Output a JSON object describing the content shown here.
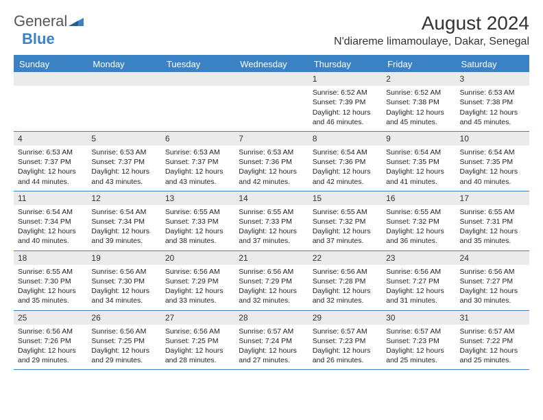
{
  "logo": {
    "general": "General",
    "blue": "Blue"
  },
  "title": "August 2024",
  "location": "N'diareme limamoulaye, Dakar, Senegal",
  "colors": {
    "header_bg": "#3b82c4",
    "header_text": "#ffffff",
    "daynum_bg": "#ebebeb",
    "rule": "#3b82c4",
    "text": "#222222",
    "page_bg": "#ffffff"
  },
  "day_headers": [
    "Sunday",
    "Monday",
    "Tuesday",
    "Wednesday",
    "Thursday",
    "Friday",
    "Saturday"
  ],
  "weeks": [
    [
      null,
      null,
      null,
      null,
      {
        "n": "1",
        "sunrise": "6:52 AM",
        "sunset": "7:39 PM",
        "daylight": "12 hours and 46 minutes."
      },
      {
        "n": "2",
        "sunrise": "6:52 AM",
        "sunset": "7:38 PM",
        "daylight": "12 hours and 45 minutes."
      },
      {
        "n": "3",
        "sunrise": "6:53 AM",
        "sunset": "7:38 PM",
        "daylight": "12 hours and 45 minutes."
      }
    ],
    [
      {
        "n": "4",
        "sunrise": "6:53 AM",
        "sunset": "7:37 PM",
        "daylight": "12 hours and 44 minutes."
      },
      {
        "n": "5",
        "sunrise": "6:53 AM",
        "sunset": "7:37 PM",
        "daylight": "12 hours and 43 minutes."
      },
      {
        "n": "6",
        "sunrise": "6:53 AM",
        "sunset": "7:37 PM",
        "daylight": "12 hours and 43 minutes."
      },
      {
        "n": "7",
        "sunrise": "6:53 AM",
        "sunset": "7:36 PM",
        "daylight": "12 hours and 42 minutes."
      },
      {
        "n": "8",
        "sunrise": "6:54 AM",
        "sunset": "7:36 PM",
        "daylight": "12 hours and 42 minutes."
      },
      {
        "n": "9",
        "sunrise": "6:54 AM",
        "sunset": "7:35 PM",
        "daylight": "12 hours and 41 minutes."
      },
      {
        "n": "10",
        "sunrise": "6:54 AM",
        "sunset": "7:35 PM",
        "daylight": "12 hours and 40 minutes."
      }
    ],
    [
      {
        "n": "11",
        "sunrise": "6:54 AM",
        "sunset": "7:34 PM",
        "daylight": "12 hours and 40 minutes."
      },
      {
        "n": "12",
        "sunrise": "6:54 AM",
        "sunset": "7:34 PM",
        "daylight": "12 hours and 39 minutes."
      },
      {
        "n": "13",
        "sunrise": "6:55 AM",
        "sunset": "7:33 PM",
        "daylight": "12 hours and 38 minutes."
      },
      {
        "n": "14",
        "sunrise": "6:55 AM",
        "sunset": "7:33 PM",
        "daylight": "12 hours and 37 minutes."
      },
      {
        "n": "15",
        "sunrise": "6:55 AM",
        "sunset": "7:32 PM",
        "daylight": "12 hours and 37 minutes."
      },
      {
        "n": "16",
        "sunrise": "6:55 AM",
        "sunset": "7:32 PM",
        "daylight": "12 hours and 36 minutes."
      },
      {
        "n": "17",
        "sunrise": "6:55 AM",
        "sunset": "7:31 PM",
        "daylight": "12 hours and 35 minutes."
      }
    ],
    [
      {
        "n": "18",
        "sunrise": "6:55 AM",
        "sunset": "7:30 PM",
        "daylight": "12 hours and 35 minutes."
      },
      {
        "n": "19",
        "sunrise": "6:56 AM",
        "sunset": "7:30 PM",
        "daylight": "12 hours and 34 minutes."
      },
      {
        "n": "20",
        "sunrise": "6:56 AM",
        "sunset": "7:29 PM",
        "daylight": "12 hours and 33 minutes."
      },
      {
        "n": "21",
        "sunrise": "6:56 AM",
        "sunset": "7:29 PM",
        "daylight": "12 hours and 32 minutes."
      },
      {
        "n": "22",
        "sunrise": "6:56 AM",
        "sunset": "7:28 PM",
        "daylight": "12 hours and 32 minutes."
      },
      {
        "n": "23",
        "sunrise": "6:56 AM",
        "sunset": "7:27 PM",
        "daylight": "12 hours and 31 minutes."
      },
      {
        "n": "24",
        "sunrise": "6:56 AM",
        "sunset": "7:27 PM",
        "daylight": "12 hours and 30 minutes."
      }
    ],
    [
      {
        "n": "25",
        "sunrise": "6:56 AM",
        "sunset": "7:26 PM",
        "daylight": "12 hours and 29 minutes."
      },
      {
        "n": "26",
        "sunrise": "6:56 AM",
        "sunset": "7:25 PM",
        "daylight": "12 hours and 29 minutes."
      },
      {
        "n": "27",
        "sunrise": "6:56 AM",
        "sunset": "7:25 PM",
        "daylight": "12 hours and 28 minutes."
      },
      {
        "n": "28",
        "sunrise": "6:57 AM",
        "sunset": "7:24 PM",
        "daylight": "12 hours and 27 minutes."
      },
      {
        "n": "29",
        "sunrise": "6:57 AM",
        "sunset": "7:23 PM",
        "daylight": "12 hours and 26 minutes."
      },
      {
        "n": "30",
        "sunrise": "6:57 AM",
        "sunset": "7:23 PM",
        "daylight": "12 hours and 25 minutes."
      },
      {
        "n": "31",
        "sunrise": "6:57 AM",
        "sunset": "7:22 PM",
        "daylight": "12 hours and 25 minutes."
      }
    ]
  ],
  "labels": {
    "sunrise": "Sunrise:",
    "sunset": "Sunset:",
    "daylight": "Daylight:"
  }
}
